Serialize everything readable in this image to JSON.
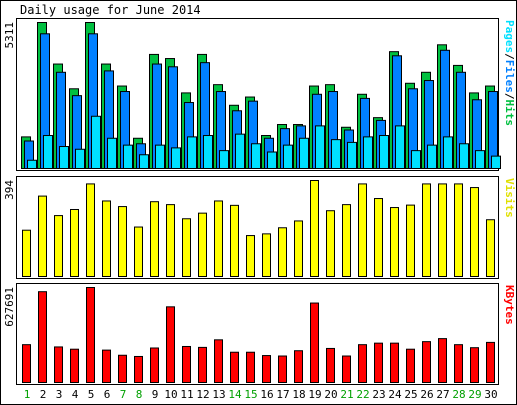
{
  "chart_data": {
    "type": "bar",
    "title": "Daily usage for June 2014",
    "categories": [
      "1",
      "2",
      "3",
      "4",
      "5",
      "6",
      "7",
      "8",
      "9",
      "10",
      "11",
      "12",
      "13",
      "14",
      "15",
      "16",
      "17",
      "18",
      "19",
      "20",
      "21",
      "22",
      "23",
      "24",
      "25",
      "26",
      "27",
      "28",
      "29",
      "30"
    ],
    "weekend_days": [
      "1",
      "7",
      "8",
      "14",
      "15",
      "21",
      "22",
      "28",
      "29"
    ],
    "panels": [
      {
        "id": "hits-files-pages",
        "ymax_label": "5311",
        "ylim": [
          0,
          5311
        ],
        "legend": [
          "Pages",
          "/",
          "Files",
          "/",
          "Hits"
        ],
        "series": [
          {
            "name": "Hits",
            "color": "#00c040",
            "values": [
              1150,
              5311,
              3800,
              2900,
              5311,
              3800,
              3000,
              1100,
              4150,
              4000,
              2750,
              4150,
              3050,
              2300,
              2600,
              1200,
              1600,
              1600,
              3000,
              3050,
              1500,
              2700,
              1850,
              4250,
              3100,
              3500,
              4500,
              3750,
              2750,
              3000
            ]
          },
          {
            "name": "Files",
            "color": "#0080ff",
            "values": [
              1000,
              4900,
              3500,
              2650,
              4900,
              3550,
              2800,
              900,
              3800,
              3700,
              2400,
              3850,
              2800,
              2100,
              2450,
              1100,
              1450,
              1550,
              2700,
              2800,
              1400,
              2550,
              1750,
              4100,
              2900,
              3200,
              4300,
              3500,
              2500,
              2800
            ]
          },
          {
            "name": "Pages",
            "color": "#00e0ff",
            "values": [
              300,
              1200,
              800,
              700,
              1900,
              1100,
              850,
              500,
              850,
              750,
              1150,
              1200,
              650,
              1250,
              900,
              600,
              850,
              1100,
              1550,
              1050,
              950,
              1150,
              1200,
              1550,
              650,
              850,
              1150,
              900,
              650,
              450
            ]
          }
        ]
      },
      {
        "id": "visits",
        "ymax_label": "394",
        "ylim": [
          0,
          394
        ],
        "legend": [
          "Visits"
        ],
        "series": [
          {
            "name": "Visits",
            "color": "#ffff00",
            "values": [
              190,
              330,
              250,
              275,
              380,
              310,
              287,
              203,
              307,
              295,
              237,
              260,
              310,
              292,
              168,
              175,
              200,
              228,
              394,
              270,
              295,
              380,
              320,
              283,
              293,
              380,
              380,
              380,
              365,
              233
            ]
          }
        ]
      },
      {
        "id": "kbytes",
        "ymax_label": "627691",
        "ylim": [
          0,
          627691
        ],
        "legend": [
          "KBytes"
        ],
        "series": [
          {
            "name": "KBytes",
            "color": "#ff0000",
            "values": [
              250000,
              600000,
              235000,
              220000,
              627691,
              214000,
              180000,
              172000,
              228000,
              500000,
              238000,
              232000,
              282000,
              200000,
              200000,
              178000,
              175000,
              210000,
              525000,
              225000,
              175000,
              250000,
              260000,
              260000,
              220000,
              270000,
              290000,
              250000,
              230000,
              265000
            ]
          }
        ]
      }
    ],
    "legend_colors": {
      "Pages": "#00e0ff",
      "Files": "#0080ff",
      "Hits": "#00c040",
      "/": "#000000",
      "Visits": "#e0e000",
      "KBytes": "#ff0000"
    },
    "axis_label_colors": {
      "weekday": "#000000",
      "weekend": "#00a000"
    }
  }
}
